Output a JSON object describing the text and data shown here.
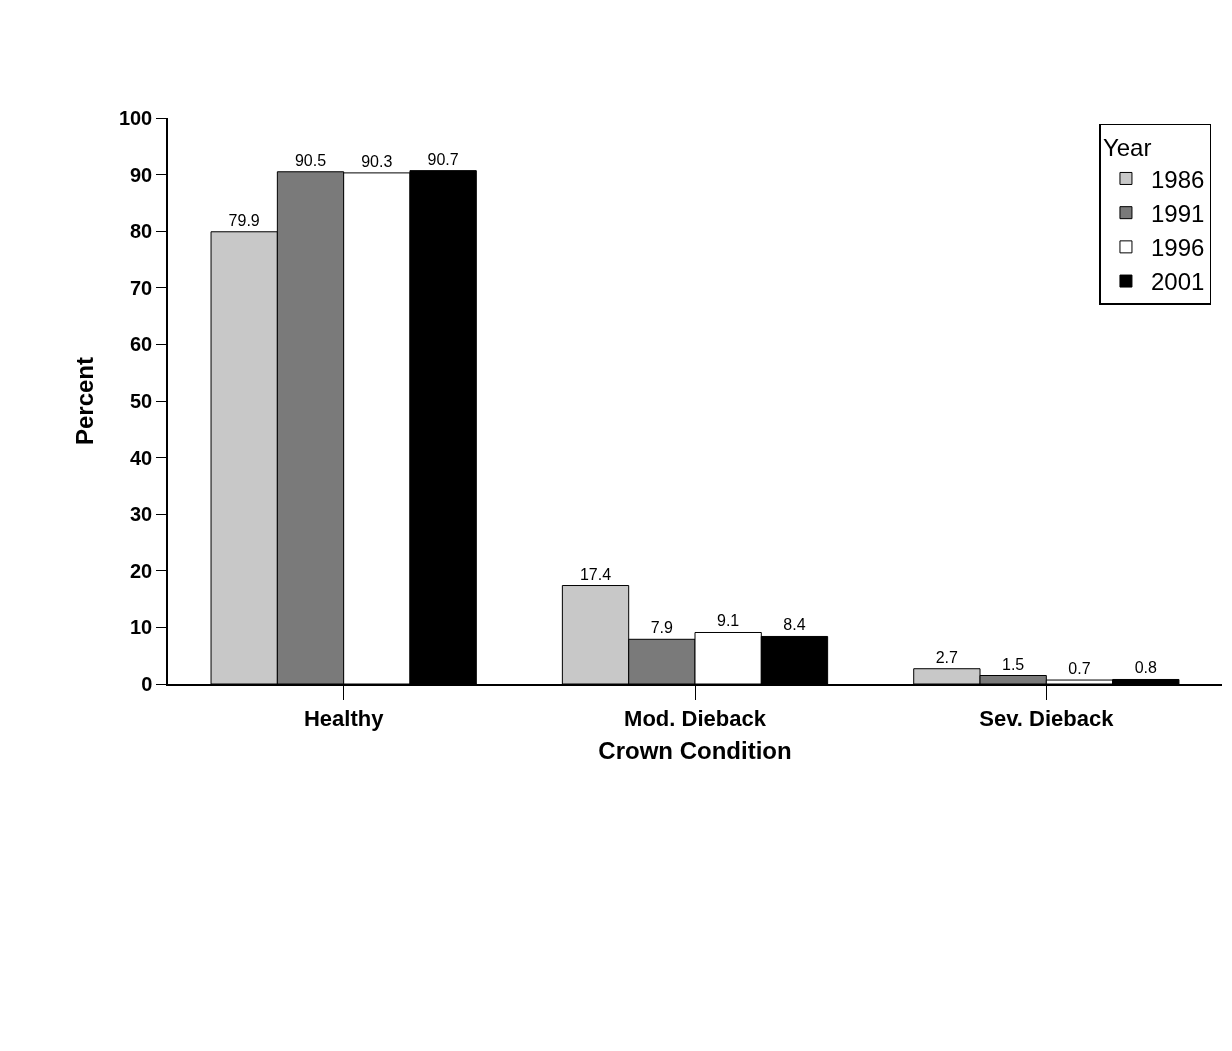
{
  "chart_data": {
    "type": "bar",
    "xlabel": "Crown Condition",
    "ylabel": "Percent",
    "legend_title": "Year",
    "categories": [
      "Healthy",
      "Mod. Dieback",
      "Sev. Dieback"
    ],
    "series": [
      {
        "name": "1986",
        "color": "#c8c8c8",
        "values": [
          79.9,
          17.4,
          2.7
        ]
      },
      {
        "name": "1991",
        "color": "#7a7a7a",
        "values": [
          90.5,
          7.9,
          1.5
        ]
      },
      {
        "name": "1996",
        "color": "#ffffff",
        "values": [
          90.3,
          9.1,
          0.7
        ]
      },
      {
        "name": "2001",
        "color": "#000000",
        "values": [
          90.7,
          8.4,
          0.8
        ]
      }
    ],
    "ylim": [
      0,
      100
    ],
    "yticks": [
      0,
      10,
      20,
      30,
      40,
      50,
      60,
      70,
      80,
      90,
      100
    ],
    "data_labels": true,
    "grid": false,
    "legend": "top right"
  }
}
